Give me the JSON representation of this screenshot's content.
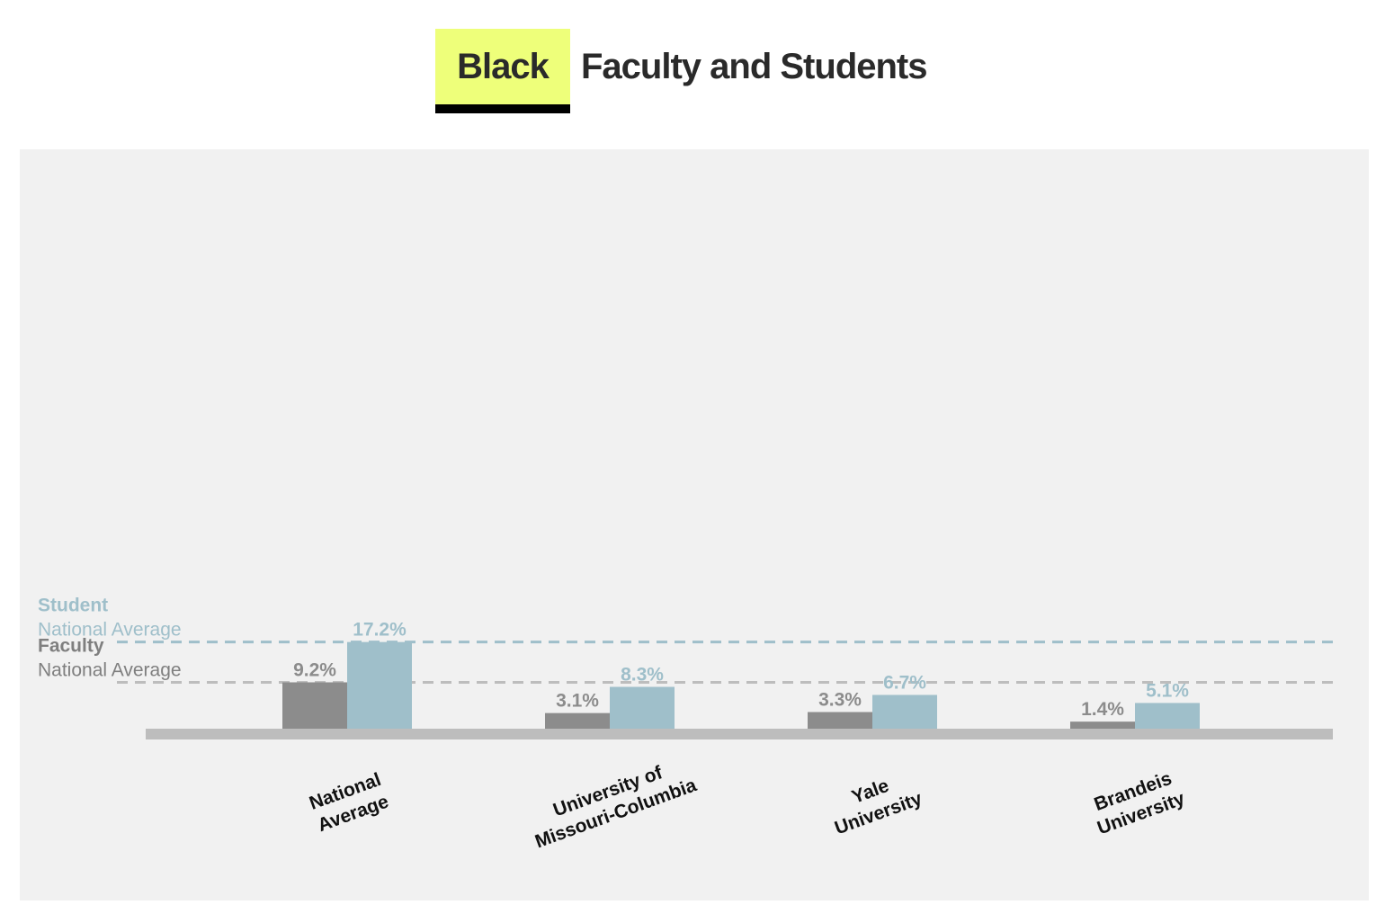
{
  "title": {
    "tag": "Black",
    "rest": "Faculty and Students"
  },
  "chart_data": {
    "type": "bar",
    "categories": [
      [
        "National",
        "Average"
      ],
      [
        "University of",
        "Missouri-Columbia"
      ],
      [
        "Yale",
        "University"
      ],
      [
        "Brandeis",
        "University"
      ]
    ],
    "series": [
      {
        "name": "Faculty",
        "color": "#8c8c8c",
        "values": [
          9.2,
          3.1,
          3.3,
          1.4
        ],
        "labels": [
          "9.2%",
          "3.1%",
          "3.3%",
          "1.4%"
        ]
      },
      {
        "name": "Student",
        "color": "#9fbfca",
        "values": [
          17.2,
          8.3,
          6.7,
          5.1
        ],
        "labels": [
          "17.2%",
          "8.3%",
          "6.7%",
          "5.1%"
        ]
      }
    ],
    "reference_lines": [
      {
        "series": "Student",
        "value": 17.2,
        "label_top": "Student",
        "label_bottom": "National Average",
        "color": "#9fbfca",
        "style": "dashed"
      },
      {
        "series": "Faculty",
        "value": 9.2,
        "label_top": "Faculty",
        "label_bottom": "National Average",
        "color": "#bdbdbd",
        "label_color": "#7f7f7f",
        "style": "dashed"
      }
    ],
    "ylim": [
      0,
      100
    ],
    "xlabel": "",
    "ylabel": "",
    "grid": false,
    "x_label_rotation": "-20deg",
    "baseline_color": "#bdbdbd"
  },
  "colors": {
    "background": "#f1f1f1",
    "title_highlight": "#eeff7a",
    "title_text": "#2a2a2a",
    "category_text": "#111111"
  }
}
